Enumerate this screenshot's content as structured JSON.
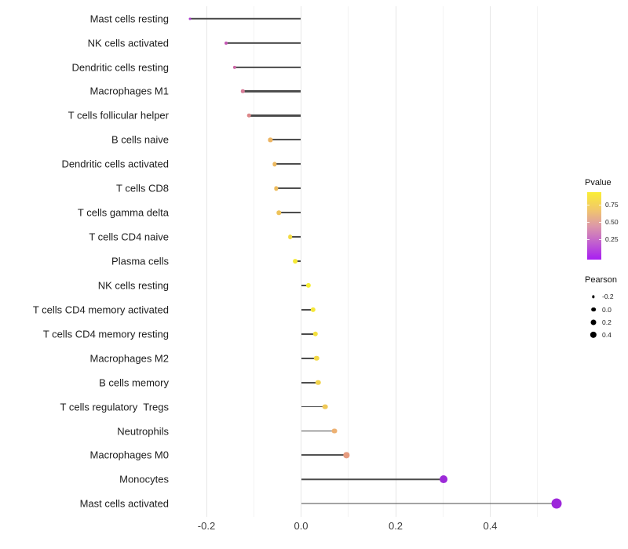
{
  "chart_data": {
    "type": "scatter",
    "subtype": "horizontal-lollipop",
    "title": "",
    "xlabel": "",
    "ylabel": "",
    "xlim": [
      -0.28,
      0.6
    ],
    "grid": true,
    "x_major_ticks": [
      {
        "label": "-0.2",
        "value": -0.2
      },
      {
        "label": "0.0",
        "value": 0.0
      },
      {
        "label": "0.2",
        "value": 0.2
      },
      {
        "label": "0.4",
        "value": 0.4
      }
    ],
    "x_minor_ticks": [
      -0.1,
      0.1,
      0.3,
      0.5
    ],
    "points": [
      {
        "label": "Mast cells resting",
        "pearson": -0.235,
        "pvalue": 0.15,
        "color": "#ac3cce"
      },
      {
        "label": "NK cells activated",
        "pearson": -0.158,
        "pvalue": 0.28,
        "color": "#c355b3"
      },
      {
        "label": "Dendritic cells resting",
        "pearson": -0.14,
        "pvalue": 0.33,
        "color": "#cc68a5"
      },
      {
        "label": "Macrophages M1",
        "pearson": -0.123,
        "pvalue": 0.38,
        "color": "#d67c97"
      },
      {
        "label": "T cells follicular helper",
        "pearson": -0.11,
        "pvalue": 0.42,
        "color": "#dc8789"
      },
      {
        "label": "B cells naive",
        "pearson": -0.065,
        "pvalue": 0.62,
        "color": "#ecb563"
      },
      {
        "label": "Dendritic cells activated",
        "pearson": -0.056,
        "pvalue": 0.64,
        "color": "#edb960"
      },
      {
        "label": "T cells CD8",
        "pearson": -0.053,
        "pvalue": 0.65,
        "color": "#edbc5e"
      },
      {
        "label": "T cells gamma delta",
        "pearson": -0.047,
        "pvalue": 0.67,
        "color": "#eec35a"
      },
      {
        "label": "T cells CD4 naive",
        "pearson": -0.023,
        "pvalue": 0.78,
        "color": "#f3da41"
      },
      {
        "label": "Plasma cells",
        "pearson": -0.013,
        "pvalue": 0.84,
        "color": "#f6e936"
      },
      {
        "label": "NK cells resting",
        "pearson": 0.016,
        "pvalue": 0.87,
        "color": "#f6ee33"
      },
      {
        "label": "T cells CD4 memory activated",
        "pearson": 0.025,
        "pvalue": 0.84,
        "color": "#f5e739"
      },
      {
        "label": "T cells CD4 memory resting",
        "pearson": 0.03,
        "pvalue": 0.81,
        "color": "#f4e13d"
      },
      {
        "label": "Macrophages M2",
        "pearson": 0.033,
        "pvalue": 0.77,
        "color": "#f2d847"
      },
      {
        "label": "B cells memory",
        "pearson": 0.036,
        "pvalue": 0.74,
        "color": "#f1d24c"
      },
      {
        "label": "T cells regulatory  Tregs",
        "pearson": 0.051,
        "pvalue": 0.7,
        "color": "#efc857"
      },
      {
        "label": "Neutrophils",
        "pearson": 0.07,
        "pvalue": 0.6,
        "color": "#edb172"
      },
      {
        "label": "Macrophages M0",
        "pearson": 0.096,
        "pvalue": 0.5,
        "color": "#e69c80"
      },
      {
        "label": "Monocytes",
        "pearson": 0.301,
        "pvalue": 0.07,
        "color": "#9c2ad8"
      },
      {
        "label": "Mast cells activated",
        "pearson": 0.54,
        "pvalue": 0.05,
        "color": "#9d27da"
      }
    ],
    "color_legend": {
      "title": "Pvalue",
      "tick_labels": [
        "0.75",
        "0.50",
        "0.25"
      ],
      "gradient_stops": [
        "#faee35",
        "#f2c968",
        "#dd98a8",
        "#c160cf",
        "#a81df2"
      ],
      "position": "right"
    },
    "size_legend": {
      "title": "Pearson",
      "entries": [
        {
          "label": "-0.2",
          "diameter": 3.3
        },
        {
          "label": "0.0",
          "diameter": 5.7
        },
        {
          "label": "0.2",
          "diameter": 7.0
        },
        {
          "label": "0.4",
          "diameter": 8.3
        }
      ],
      "position": "right"
    }
  }
}
